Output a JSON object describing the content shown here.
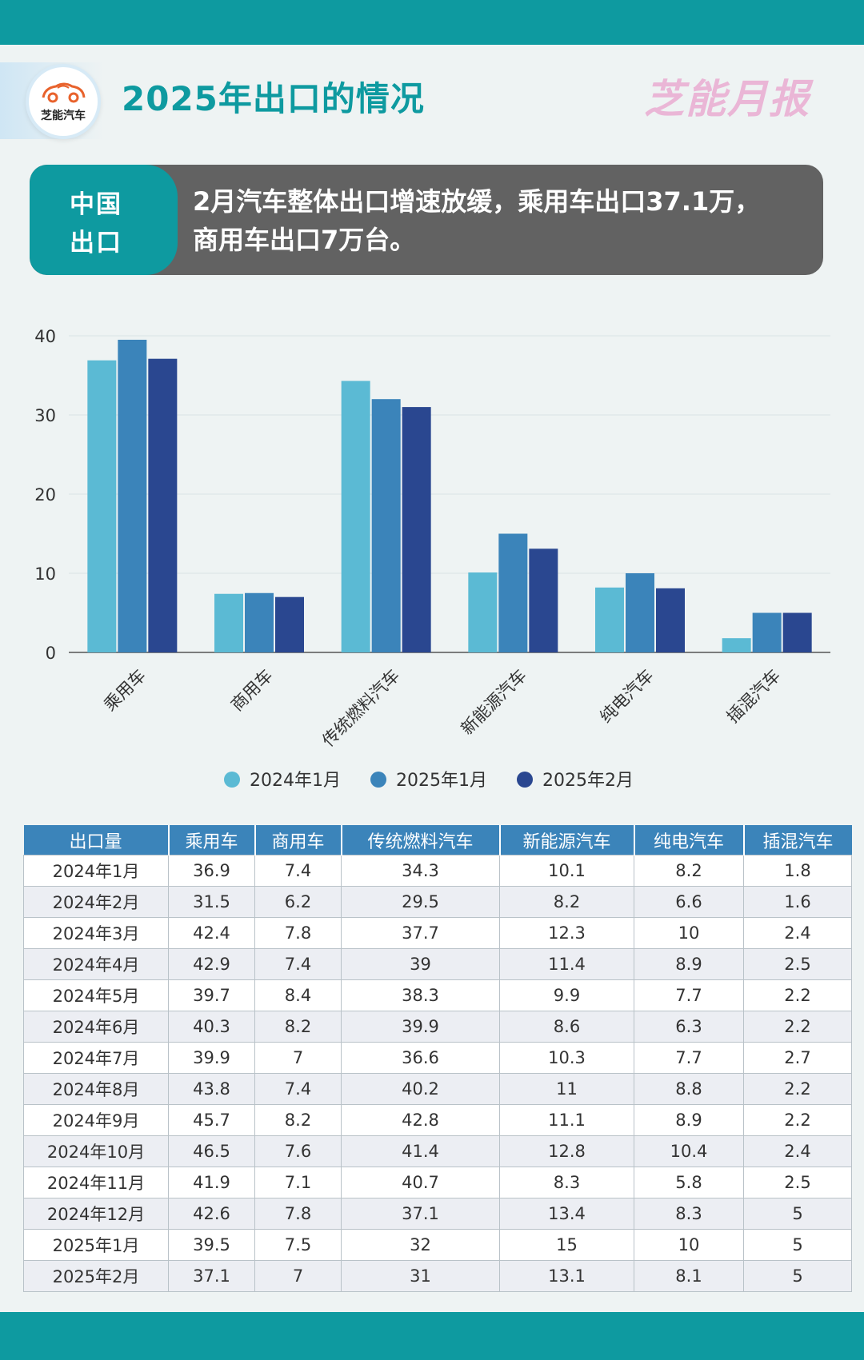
{
  "header": {
    "logo_text": "芝能汽车",
    "title": "2025年出口的情况",
    "brand_mark": "芝能月报"
  },
  "banner": {
    "tag_line1": "中国",
    "tag_line2": "出口",
    "line1": "2月汽车整体出口增速放缓，乘用车出口37.1万，",
    "line2": "商用车出口7万台。"
  },
  "colors": {
    "teal": "#0e9aa0",
    "series_2024_01": "#5bbad4",
    "series_2025_01": "#3b84ba",
    "series_2025_02": "#2a4790"
  },
  "chart_data": {
    "type": "bar",
    "categories": [
      "乘用车",
      "商用车",
      "传统燃料汽车",
      "新能源汽车",
      "纯电汽车",
      "插混汽车"
    ],
    "series": [
      {
        "name": "2024年1月",
        "values": [
          36.9,
          7.4,
          34.3,
          10.1,
          8.2,
          1.8
        ]
      },
      {
        "name": "2025年1月",
        "values": [
          39.5,
          7.5,
          32,
          15,
          10,
          5
        ]
      },
      {
        "name": "2025年2月",
        "values": [
          37.1,
          7,
          31,
          13.1,
          8.1,
          5
        ]
      }
    ],
    "yticks": [
      "0",
      "10",
      "20",
      "30",
      "40"
    ],
    "ylim": [
      0,
      40
    ],
    "grid": true,
    "legend_position": "bottom"
  },
  "table": {
    "headers": [
      "出口量",
      "乘用车",
      "商用车",
      "传统燃料汽车",
      "新能源汽车",
      "纯电汽车",
      "插混汽车"
    ],
    "rows": [
      [
        "2024年1月",
        "36.9",
        "7.4",
        "34.3",
        "10.1",
        "8.2",
        "1.8"
      ],
      [
        "2024年2月",
        "31.5",
        "6.2",
        "29.5",
        "8.2",
        "6.6",
        "1.6"
      ],
      [
        "2024年3月",
        "42.4",
        "7.8",
        "37.7",
        "12.3",
        "10",
        "2.4"
      ],
      [
        "2024年4月",
        "42.9",
        "7.4",
        "39",
        "11.4",
        "8.9",
        "2.5"
      ],
      [
        "2024年5月",
        "39.7",
        "8.4",
        "38.3",
        "9.9",
        "7.7",
        "2.2"
      ],
      [
        "2024年6月",
        "40.3",
        "8.2",
        "39.9",
        "8.6",
        "6.3",
        "2.2"
      ],
      [
        "2024年7月",
        "39.9",
        "7",
        "36.6",
        "10.3",
        "7.7",
        "2.7"
      ],
      [
        "2024年8月",
        "43.8",
        "7.4",
        "40.2",
        "11",
        "8.8",
        "2.2"
      ],
      [
        "2024年9月",
        "45.7",
        "8.2",
        "42.8",
        "11.1",
        "8.9",
        "2.2"
      ],
      [
        "2024年10月",
        "46.5",
        "7.6",
        "41.4",
        "12.8",
        "10.4",
        "2.4"
      ],
      [
        "2024年11月",
        "41.9",
        "7.1",
        "40.7",
        "8.3",
        "5.8",
        "2.5"
      ],
      [
        "2024年12月",
        "42.6",
        "7.8",
        "37.1",
        "13.4",
        "8.3",
        "5"
      ],
      [
        "2025年1月",
        "39.5",
        "7.5",
        "32",
        "15",
        "10",
        "5"
      ],
      [
        "2025年2月",
        "37.1",
        "7",
        "31",
        "13.1",
        "8.1",
        "5"
      ]
    ]
  }
}
